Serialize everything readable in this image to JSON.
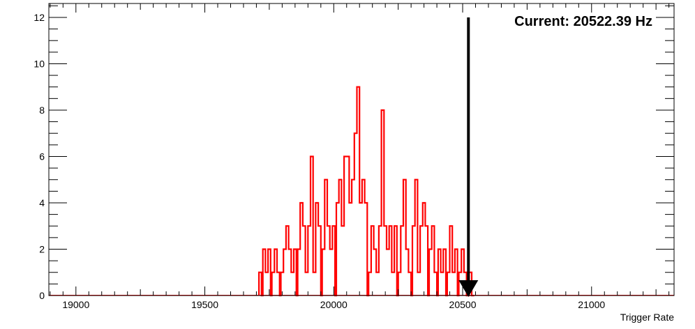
{
  "chart_data": {
    "type": "bar",
    "histogram": true,
    "xlabel": "Trigger Rate",
    "ylabel": "",
    "xlim": [
      18895,
      21320
    ],
    "ylim": [
      0,
      12.6
    ],
    "x_ticks": [
      19000,
      19500,
      20000,
      20500,
      21000
    ],
    "x_tick_labels": [
      "19000",
      "19500",
      "20000",
      "20500",
      "21000"
    ],
    "y_ticks": [
      0,
      2,
      4,
      6,
      8,
      10,
      12
    ],
    "y_tick_labels": [
      "0",
      "2",
      "4",
      "6",
      "8",
      "10",
      "12"
    ],
    "grid": false,
    "line_color": "#ff0000",
    "bins": [
      {
        "x": 19710,
        "count": 1
      },
      {
        "x": 19720,
        "count": 0
      },
      {
        "x": 19725,
        "count": 2
      },
      {
        "x": 19735,
        "count": 1
      },
      {
        "x": 19745,
        "count": 2
      },
      {
        "x": 19755,
        "count": 0
      },
      {
        "x": 19760,
        "count": 1
      },
      {
        "x": 19770,
        "count": 2
      },
      {
        "x": 19780,
        "count": 1
      },
      {
        "x": 19790,
        "count": 0
      },
      {
        "x": 19795,
        "count": 1
      },
      {
        "x": 19805,
        "count": 2
      },
      {
        "x": 19815,
        "count": 3
      },
      {
        "x": 19825,
        "count": 2
      },
      {
        "x": 19835,
        "count": 1
      },
      {
        "x": 19845,
        "count": 2
      },
      {
        "x": 19855,
        "count": 0
      },
      {
        "x": 19860,
        "count": 2
      },
      {
        "x": 19870,
        "count": 4
      },
      {
        "x": 19880,
        "count": 3
      },
      {
        "x": 19890,
        "count": 1
      },
      {
        "x": 19900,
        "count": 3
      },
      {
        "x": 19910,
        "count": 6
      },
      {
        "x": 19920,
        "count": 1
      },
      {
        "x": 19930,
        "count": 4
      },
      {
        "x": 19940,
        "count": 3
      },
      {
        "x": 19950,
        "count": 0
      },
      {
        "x": 19955,
        "count": 2
      },
      {
        "x": 19965,
        "count": 5
      },
      {
        "x": 19975,
        "count": 3
      },
      {
        "x": 19985,
        "count": 2
      },
      {
        "x": 19995,
        "count": 3
      },
      {
        "x": 20005,
        "count": 0
      },
      {
        "x": 20010,
        "count": 4
      },
      {
        "x": 20020,
        "count": 5
      },
      {
        "x": 20030,
        "count": 3
      },
      {
        "x": 20040,
        "count": 6
      },
      {
        "x": 20050,
        "count": 6
      },
      {
        "x": 20060,
        "count": 4
      },
      {
        "x": 20070,
        "count": 5
      },
      {
        "x": 20080,
        "count": 7
      },
      {
        "x": 20090,
        "count": 9
      },
      {
        "x": 20100,
        "count": 4
      },
      {
        "x": 20110,
        "count": 5
      },
      {
        "x": 20120,
        "count": 4
      },
      {
        "x": 20130,
        "count": 0
      },
      {
        "x": 20135,
        "count": 1
      },
      {
        "x": 20145,
        "count": 3
      },
      {
        "x": 20155,
        "count": 2
      },
      {
        "x": 20165,
        "count": 1
      },
      {
        "x": 20175,
        "count": 3
      },
      {
        "x": 20185,
        "count": 8
      },
      {
        "x": 20195,
        "count": 3
      },
      {
        "x": 20205,
        "count": 2
      },
      {
        "x": 20215,
        "count": 3
      },
      {
        "x": 20225,
        "count": 1
      },
      {
        "x": 20235,
        "count": 3
      },
      {
        "x": 20245,
        "count": 0
      },
      {
        "x": 20250,
        "count": 1
      },
      {
        "x": 20260,
        "count": 3
      },
      {
        "x": 20270,
        "count": 5
      },
      {
        "x": 20280,
        "count": 2
      },
      {
        "x": 20290,
        "count": 1
      },
      {
        "x": 20300,
        "count": 0
      },
      {
        "x": 20305,
        "count": 3
      },
      {
        "x": 20315,
        "count": 5
      },
      {
        "x": 20325,
        "count": 1
      },
      {
        "x": 20335,
        "count": 3
      },
      {
        "x": 20345,
        "count": 4
      },
      {
        "x": 20355,
        "count": 3
      },
      {
        "x": 20365,
        "count": 0
      },
      {
        "x": 20370,
        "count": 2
      },
      {
        "x": 20380,
        "count": 3
      },
      {
        "x": 20390,
        "count": 1
      },
      {
        "x": 20400,
        "count": 0
      },
      {
        "x": 20405,
        "count": 2
      },
      {
        "x": 20415,
        "count": 1
      },
      {
        "x": 20425,
        "count": 2
      },
      {
        "x": 20435,
        "count": 0
      },
      {
        "x": 20440,
        "count": 1
      },
      {
        "x": 20450,
        "count": 3
      },
      {
        "x": 20460,
        "count": 1
      },
      {
        "x": 20470,
        "count": 2
      },
      {
        "x": 20480,
        "count": 0
      },
      {
        "x": 20485,
        "count": 1
      },
      {
        "x": 20495,
        "count": 2
      },
      {
        "x": 20505,
        "count": 1
      },
      {
        "x": 20515,
        "count": 0
      },
      {
        "x": 20525,
        "count": 1
      },
      {
        "x": 20535,
        "count": 0
      }
    ],
    "bin_width": 10,
    "marker": {
      "value": 20522.39,
      "top": 12,
      "color": "#000000",
      "label": "Current: 20522.39 Hz"
    }
  }
}
